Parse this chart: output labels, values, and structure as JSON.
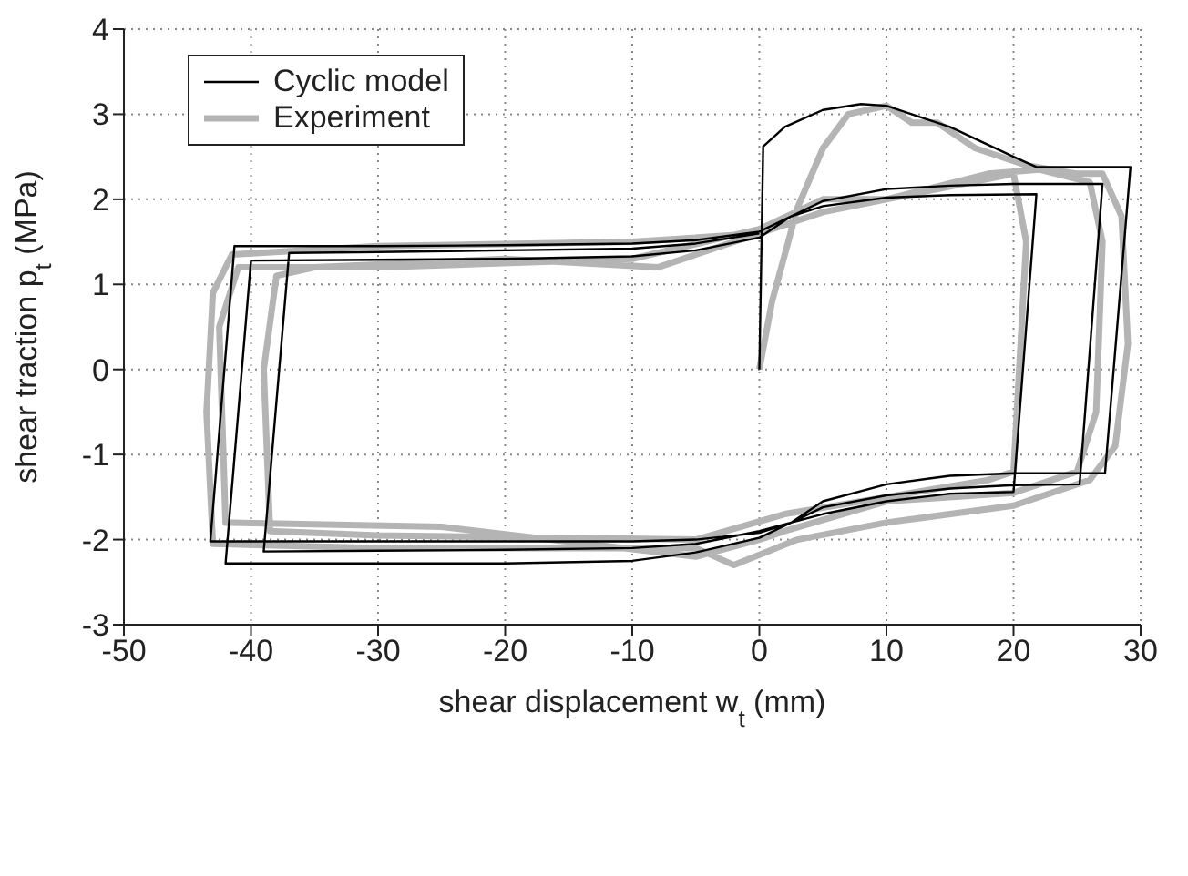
{
  "chart_data": {
    "type": "line",
    "xlabel": "shear displacement w$_{t}$ (mm)",
    "ylabel": "shear traction p$_{t}$ (MPa)",
    "xlim": [
      -50,
      30
    ],
    "xticks": [
      -50,
      -40,
      -30,
      -20,
      -10,
      0,
      10,
      20,
      30
    ],
    "ylim": [
      -3,
      4
    ],
    "yticks": [
      -3,
      -2,
      -1,
      0,
      1,
      2,
      3,
      4
    ],
    "grid": true,
    "legend": "top left",
    "marker": "none",
    "line_style": "solid",
    "series": [
      {
        "name": "Cyclic model",
        "color": "#000000",
        "x": [
          0,
          0.3,
          2,
          5,
          8,
          10,
          15,
          20,
          21.8,
          29.2,
          27.2,
          20,
          15,
          10,
          5,
          2.5,
          0,
          -5,
          -10,
          -20,
          -30,
          -43.2,
          -41.3,
          -30,
          -20,
          -10,
          -5,
          0,
          2.5,
          5,
          10,
          15,
          20,
          27.0,
          25.2,
          20,
          15,
          10,
          5,
          2.5,
          0,
          -5,
          -10,
          -20,
          -30,
          -42,
          -40,
          -30,
          -20,
          -10,
          -5,
          0,
          2.5,
          5,
          10,
          15,
          21.8,
          20,
          15,
          10,
          5,
          2.5,
          0,
          -5,
          -10,
          -20,
          -30,
          -39,
          -37,
          -30,
          -20,
          -10,
          -5,
          0
        ],
        "values": [
          0,
          2.62,
          2.85,
          3.05,
          3.12,
          3.1,
          2.85,
          2.5,
          2.38,
          2.38,
          -1.22,
          -1.22,
          -1.25,
          -1.35,
          -1.55,
          -1.8,
          -1.92,
          -2.0,
          -2.02,
          -2.02,
          -2.02,
          -2.02,
          1.45,
          1.45,
          1.46,
          1.48,
          1.52,
          1.62,
          1.8,
          1.98,
          2.12,
          2.16,
          2.18,
          2.18,
          -1.35,
          -1.36,
          -1.4,
          -1.48,
          -1.62,
          -1.8,
          -1.98,
          -2.15,
          -2.25,
          -2.28,
          -2.28,
          -2.28,
          1.28,
          1.29,
          1.3,
          1.33,
          1.4,
          1.55,
          1.8,
          1.92,
          2.02,
          2.05,
          2.06,
          -1.44,
          -1.46,
          -1.55,
          -1.7,
          -1.8,
          -1.9,
          -2.05,
          -2.1,
          -2.12,
          -2.13,
          -2.14,
          1.37,
          1.38,
          1.4,
          1.42,
          1.48,
          1.6
        ]
      },
      {
        "name": "Experiment",
        "color": "#b4b4b4",
        "x": [
          0,
          1,
          3,
          5,
          7,
          10,
          12,
          14,
          17,
          21,
          25,
          27,
          28.5,
          29,
          28,
          26,
          20,
          10,
          3,
          -2,
          -5,
          -10,
          -20,
          -30,
          -43,
          -43.5,
          -43,
          -41.5,
          -30,
          -10,
          0,
          5,
          10,
          18,
          22,
          26,
          27,
          26.5,
          25,
          20,
          10,
          2,
          0,
          -5,
          -25,
          -42,
          -42.5,
          -41,
          -30,
          -10,
          0,
          5,
          10,
          20,
          21,
          20,
          18,
          10,
          2,
          -5,
          -30,
          -38.5,
          -39,
          -38,
          -35,
          -20,
          -8,
          0
        ],
        "values": [
          0,
          0.8,
          1.9,
          2.6,
          3.0,
          3.1,
          2.9,
          2.9,
          2.6,
          2.4,
          2.3,
          2.3,
          1.8,
          0.3,
          -0.9,
          -1.3,
          -1.6,
          -1.8,
          -2.0,
          -2.3,
          -2.1,
          -2.1,
          -2.1,
          -2.1,
          -2.05,
          -0.5,
          0.9,
          1.35,
          1.45,
          1.5,
          1.6,
          1.85,
          2.0,
          2.3,
          2.35,
          2.2,
          1.5,
          -0.5,
          -1.2,
          -1.45,
          -1.55,
          -1.9,
          -2.0,
          -2.2,
          -1.85,
          -1.8,
          0.5,
          1.2,
          1.2,
          1.3,
          1.65,
          2.0,
          2.0,
          2.3,
          1.5,
          -1.2,
          -1.3,
          -1.5,
          -1.7,
          -2.0,
          -1.95,
          -1.9,
          0,
          1.1,
          1.2,
          1.3,
          1.2,
          1.6
        ]
      }
    ]
  }
}
